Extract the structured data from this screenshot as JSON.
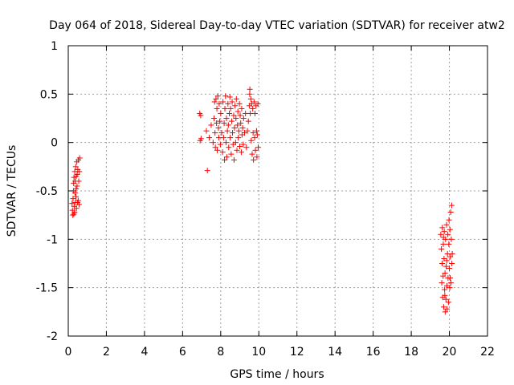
{
  "chart_data": {
    "type": "scatter",
    "title": "Day 064 of 2018, Sidereal Day-to-day VTEC variation (SDTVAR) for receiver atw2",
    "xlabel": "GPS time / hours",
    "ylabel": "SDTVAR / TECUs",
    "xlim": [
      0,
      22
    ],
    "ylim": [
      -2,
      1
    ],
    "x_ticks": [
      0,
      2,
      4,
      6,
      8,
      10,
      12,
      14,
      16,
      18,
      20,
      22
    ],
    "x_tick_labels": [
      "0",
      "2",
      "4",
      "6",
      "8",
      "10",
      "12",
      "14",
      "16",
      "18",
      "20",
      "22"
    ],
    "y_ticks": [
      -2,
      -1.5,
      -1,
      -0.5,
      0,
      0.5,
      1
    ],
    "y_tick_labels": [
      "-2",
      "-1.5",
      "-1",
      "-0.5",
      "0",
      "0.5",
      "1"
    ],
    "grid": true,
    "marker": "+",
    "marker_color": "#ff0000",
    "series": [
      {
        "name": "SDTVAR",
        "points": [
          [
            0.2,
            -0.63
          ],
          [
            0.22,
            -0.7
          ],
          [
            0.24,
            -0.75
          ],
          [
            0.25,
            -0.58
          ],
          [
            0.27,
            -0.5
          ],
          [
            0.28,
            -0.42
          ],
          [
            0.3,
            -0.36
          ],
          [
            0.31,
            -0.66
          ],
          [
            0.33,
            -0.72
          ],
          [
            0.34,
            -0.3
          ],
          [
            0.36,
            -0.4
          ],
          [
            0.37,
            -0.62
          ],
          [
            0.39,
            -0.25
          ],
          [
            0.4,
            -0.56
          ],
          [
            0.42,
            -0.35
          ],
          [
            0.43,
            -0.68
          ],
          [
            0.45,
            -0.2
          ],
          [
            0.46,
            -0.45
          ],
          [
            0.48,
            -0.62
          ],
          [
            0.5,
            -0.28
          ],
          [
            0.52,
            -0.6
          ],
          [
            0.53,
            -0.18
          ],
          [
            0.55,
            -0.4
          ],
          [
            0.57,
            -0.64
          ],
          [
            0.58,
            -0.3
          ],
          [
            0.6,
            -0.16
          ],
          [
            0.35,
            -0.52
          ],
          [
            0.29,
            -0.74
          ],
          [
            0.41,
            -0.48
          ],
          [
            0.47,
            -0.33
          ],
          [
            6.9,
            0.3
          ],
          [
            6.95,
            0.28
          ],
          [
            6.92,
            0.02
          ],
          [
            6.97,
            0.04
          ],
          [
            7.25,
            0.12
          ],
          [
            7.3,
            -0.29
          ],
          [
            7.4,
            0.05
          ],
          [
            7.5,
            0.18
          ],
          [
            7.6,
            0.0
          ],
          [
            7.65,
            0.25
          ],
          [
            7.68,
            0.42
          ],
          [
            7.7,
            0.1
          ],
          [
            7.72,
            -0.05
          ],
          [
            7.75,
            0.45
          ],
          [
            7.78,
            0.2
          ],
          [
            7.8,
            0.35
          ],
          [
            7.82,
            -0.08
          ],
          [
            7.85,
            0.48
          ],
          [
            7.88,
            0.15
          ],
          [
            7.9,
            0.05
          ],
          [
            7.92,
            0.4
          ],
          [
            7.95,
            0.22
          ],
          [
            7.98,
            -0.02
          ],
          [
            8.0,
            0.3
          ],
          [
            8.05,
            0.1
          ],
          [
            8.1,
            -0.1
          ],
          [
            8.12,
            0.42
          ],
          [
            8.15,
            0.05
          ],
          [
            8.18,
            0.2
          ],
          [
            8.2,
            -0.18
          ],
          [
            8.22,
            0.35
          ],
          [
            8.25,
            0.48
          ],
          [
            8.28,
            0.0
          ],
          [
            8.3,
            0.25
          ],
          [
            8.32,
            -0.15
          ],
          [
            8.35,
            0.12
          ],
          [
            8.38,
            0.4
          ],
          [
            8.4,
            0.18
          ],
          [
            8.42,
            -0.05
          ],
          [
            8.45,
            0.3
          ],
          [
            8.48,
            0.47
          ],
          [
            8.5,
            0.05
          ],
          [
            8.52,
            0.35
          ],
          [
            8.55,
            -0.12
          ],
          [
            8.58,
            0.22
          ],
          [
            8.6,
            0.42
          ],
          [
            8.62,
            0.1
          ],
          [
            8.65,
            -0.02
          ],
          [
            8.68,
            0.28
          ],
          [
            8.7,
            -0.18
          ],
          [
            8.72,
            0.15
          ],
          [
            8.75,
            0.38
          ],
          [
            8.78,
            0.0
          ],
          [
            8.8,
            0.25
          ],
          [
            8.82,
            0.45
          ],
          [
            8.85,
            -0.08
          ],
          [
            8.88,
            0.18
          ],
          [
            8.9,
            0.32
          ],
          [
            8.92,
            0.05
          ],
          [
            8.95,
            0.12
          ],
          [
            8.98,
            0.4
          ],
          [
            9.0,
            -0.04
          ],
          [
            9.02,
            0.28
          ],
          [
            9.05,
            0.2
          ],
          [
            9.08,
            -0.1
          ],
          [
            9.1,
            0.35
          ],
          [
            9.12,
            0.08
          ],
          [
            9.15,
            0.15
          ],
          [
            9.18,
            -0.02
          ],
          [
            9.2,
            0.25
          ],
          [
            9.25,
            0.1
          ],
          [
            9.3,
            0.3
          ],
          [
            9.35,
            -0.05
          ],
          [
            9.4,
            0.12
          ],
          [
            9.45,
            0.22
          ],
          [
            9.5,
            0.38
          ],
          [
            9.52,
            0.5
          ],
          [
            9.55,
            0.3
          ],
          [
            9.58,
            0.45
          ],
          [
            9.6,
            0.02
          ],
          [
            9.62,
            0.4
          ],
          [
            9.65,
            -0.12
          ],
          [
            9.68,
            0.35
          ],
          [
            9.7,
            0.1
          ],
          [
            9.72,
            -0.18
          ],
          [
            9.75,
            0.42
          ],
          [
            9.78,
            0.05
          ],
          [
            9.8,
            0.3
          ],
          [
            9.82,
            -0.08
          ],
          [
            9.85,
            0.38
          ],
          [
            9.88,
            0.12
          ],
          [
            9.9,
            -0.15
          ],
          [
            9.92,
            0.08
          ],
          [
            9.95,
            0.4
          ],
          [
            9.97,
            -0.05
          ],
          [
            9.53,
            0.55
          ],
          [
            19.55,
            -0.95
          ],
          [
            19.58,
            -1.1
          ],
          [
            19.6,
            -1.45
          ],
          [
            19.62,
            -1.25
          ],
          [
            19.63,
            -0.88
          ],
          [
            19.65,
            -1.6
          ],
          [
            19.67,
            -1.38
          ],
          [
            19.68,
            -1.05
          ],
          [
            19.7,
            -1.7
          ],
          [
            19.72,
            -1.2
          ],
          [
            19.73,
            -0.92
          ],
          [
            19.75,
            -1.52
          ],
          [
            19.77,
            -1.35
          ],
          [
            19.78,
            -1.75
          ],
          [
            19.8,
            -1.0
          ],
          [
            19.82,
            -1.62
          ],
          [
            19.83,
            -1.28
          ],
          [
            19.85,
            -0.85
          ],
          [
            19.87,
            -1.48
          ],
          [
            19.88,
            -1.72
          ],
          [
            19.9,
            -1.15
          ],
          [
            19.92,
            -0.95
          ],
          [
            19.93,
            -1.4
          ],
          [
            19.95,
            -1.65
          ],
          [
            19.97,
            -1.05
          ],
          [
            19.98,
            -0.8
          ],
          [
            20.0,
            -1.3
          ],
          [
            20.02,
            -1.5
          ],
          [
            20.03,
            -0.9
          ],
          [
            20.05,
            -1.18
          ],
          [
            20.07,
            -0.72
          ],
          [
            20.08,
            -1.45
          ],
          [
            20.1,
            -1.0
          ],
          [
            20.12,
            -0.65
          ],
          [
            20.13,
            -1.25
          ],
          [
            20.15,
            -1.15
          ],
          [
            19.76,
            -1.58
          ],
          [
            19.86,
            -1.22
          ],
          [
            20.04,
            -1.4
          ],
          [
            19.69,
            -0.98
          ]
        ]
      }
    ]
  }
}
